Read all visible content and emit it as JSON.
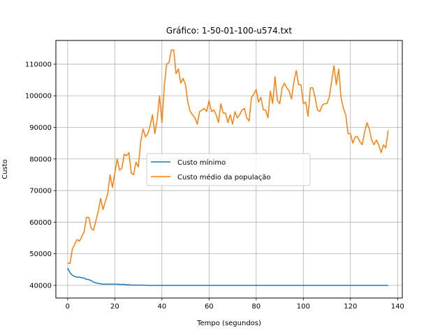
{
  "chart_data": {
    "type": "line",
    "title": "Gráfico: 1-50-01-100-u574.txt",
    "xlabel": "Tempo (segundos)",
    "ylabel": "Custo",
    "xlim": [
      -5,
      142
    ],
    "ylim": [
      36000,
      117500
    ],
    "xticks": [
      0,
      20,
      40,
      60,
      80,
      100,
      120,
      140
    ],
    "yticks": [
      40000,
      50000,
      60000,
      70000,
      80000,
      90000,
      100000,
      110000
    ],
    "grid": true,
    "legend_position": "center",
    "series": [
      {
        "name": "Custo mínimo",
        "color": "#1f77b4",
        "x": [
          0,
          1,
          2,
          3,
          4,
          5,
          6,
          7,
          8,
          9,
          10,
          11,
          12,
          13,
          14,
          15,
          16,
          17,
          18,
          19,
          20,
          21,
          22,
          23,
          24,
          25,
          26,
          27,
          28,
          29,
          30,
          32,
          34,
          36,
          38,
          40,
          50,
          60,
          70,
          80,
          90,
          100,
          110,
          120,
          130,
          136
        ],
        "y": [
          45500,
          44000,
          43200,
          42800,
          42600,
          42600,
          42400,
          42300,
          41900,
          41800,
          41500,
          41000,
          40800,
          40600,
          40500,
          40400,
          40400,
          40400,
          40400,
          40400,
          40400,
          40400,
          40300,
          40300,
          40300,
          40200,
          40200,
          40100,
          40100,
          40100,
          40100,
          40100,
          40000,
          40000,
          40000,
          40000,
          40000,
          40000,
          40000,
          40000,
          40000,
          40000,
          40000,
          40000,
          40000,
          40000
        ]
      },
      {
        "name": "Custo médio da população",
        "color": "#ff7f0e",
        "x": [
          0,
          1,
          2,
          3,
          4,
          5,
          6,
          7,
          8,
          9,
          10,
          11,
          12,
          13,
          14,
          15,
          16,
          17,
          18,
          19,
          20,
          21,
          22,
          23,
          24,
          25,
          26,
          27,
          28,
          29,
          30,
          31,
          32,
          33,
          34,
          35,
          36,
          37,
          38,
          39,
          40,
          41,
          42,
          43,
          44,
          45,
          46,
          47,
          48,
          49,
          50,
          51,
          52,
          53,
          54,
          55,
          56,
          57,
          58,
          59,
          60,
          61,
          62,
          63,
          64,
          65,
          66,
          67,
          68,
          69,
          70,
          71,
          72,
          73,
          74,
          75,
          76,
          77,
          78,
          79,
          80,
          81,
          82,
          83,
          84,
          85,
          86,
          87,
          88,
          89,
          90,
          91,
          92,
          93,
          94,
          95,
          96,
          97,
          98,
          99,
          100,
          101,
          102,
          103,
          104,
          105,
          106,
          107,
          108,
          109,
          110,
          111,
          112,
          113,
          114,
          115,
          116,
          117,
          118,
          119,
          120,
          121,
          122,
          123,
          124,
          125,
          126,
          127,
          128,
          129,
          130,
          131,
          132,
          133,
          134,
          135,
          136
        ],
        "y": [
          47000,
          47000,
          51500,
          53000,
          54500,
          54000,
          55500,
          57000,
          61500,
          61500,
          58000,
          57500,
          60500,
          63500,
          67500,
          64000,
          66500,
          69000,
          75000,
          71000,
          75500,
          80000,
          76500,
          77000,
          81500,
          81000,
          82000,
          75500,
          75000,
          79000,
          77500,
          85500,
          89500,
          87000,
          88000,
          90500,
          94000,
          88000,
          92500,
          100000,
          91500,
          103000,
          110000,
          110500,
          114500,
          114500,
          107000,
          108500,
          104000,
          105500,
          103500,
          98000,
          95000,
          94000,
          93000,
          91000,
          95000,
          95500,
          96000,
          95000,
          98500,
          95000,
          95500,
          94000,
          91500,
          97500,
          94500,
          94500,
          91500,
          94000,
          91000,
          95000,
          93000,
          94000,
          95500,
          96000,
          93000,
          92000,
          99500,
          100500,
          102000,
          98000,
          99500,
          95500,
          95500,
          93000,
          101500,
          97500,
          106000,
          98500,
          97500,
          102500,
          104000,
          102500,
          101500,
          99000,
          104500,
          108000,
          103500,
          103500,
          97500,
          98000,
          93500,
          102500,
          102500,
          99500,
          95500,
          95000,
          97000,
          97500,
          97500,
          99500,
          104500,
          109500,
          103500,
          108500,
          99500,
          96000,
          94000,
          88000,
          88000,
          85000,
          87000,
          87000,
          85500,
          84500,
          88500,
          91500,
          89500,
          86000,
          84500,
          86000,
          84500,
          82000,
          84500,
          83500,
          89000
        ]
      }
    ]
  }
}
